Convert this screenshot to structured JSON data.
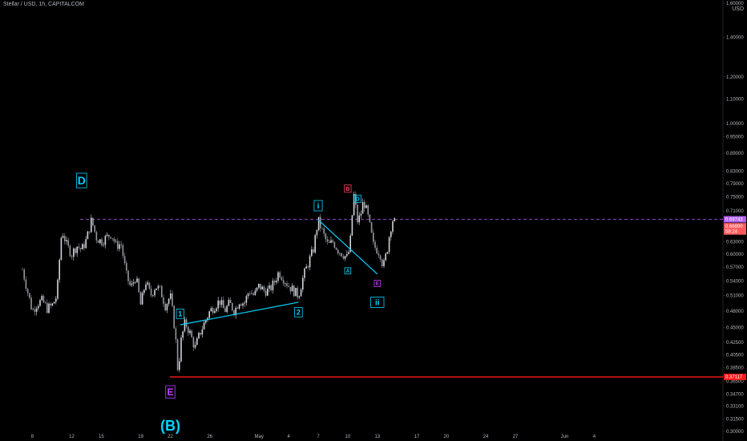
{
  "header": {
    "title": "Stellar / USD, 1h, CAPITALCOM",
    "currency": "USD"
  },
  "colors": {
    "background": "#000000",
    "candle_up": "#d1d4dc",
    "candle_down": "#9598a1",
    "wave_cyan": "#00d4ff",
    "wave_purple": "#c040ff",
    "wave_red": "#ff4060",
    "support_line": "#ff1a1a",
    "resistance_dash": "#b05ff0",
    "price_tag_current": "#ff5a5a"
  },
  "chart_data": {
    "type": "candlestick",
    "symbol": "Stellar / USD",
    "interval": "1h",
    "source": "CAPITALCOM",
    "y_scale": "log",
    "ylim": [
      0.3,
      1.6
    ],
    "y_ticks": [
      "1.60000",
      "1.40000",
      "1.20000",
      "1.10000",
      "1.00000",
      "0.95000",
      "0.89000",
      "0.83000",
      "0.79000",
      "0.75000",
      "0.71000",
      "0.66000",
      "0.63000",
      "0.60000",
      "0.57000",
      "0.54000",
      "0.51000",
      "0.48000",
      "0.45000",
      "0.42500",
      "0.40500",
      "0.38500",
      "0.36500",
      "0.34700",
      "0.33100",
      "0.31500",
      "0.30000"
    ],
    "x_ticks": [
      "8",
      "12",
      "15",
      "19",
      "22",
      "26",
      "May",
      "4",
      "7",
      "10",
      "13",
      "17",
      "20",
      "24",
      "27",
      "Jun",
      "4"
    ],
    "price_tags": [
      {
        "text": "0.68743",
        "value": 0.68743
      },
      {
        "text": "0.66890",
        "value": 0.6689
      },
      {
        "text": "58:24",
        "value": 0.6554
      },
      {
        "text": "0.37117",
        "value": 0.37117
      }
    ],
    "horizontal_levels": [
      {
        "value": 0.68743,
        "style": "dashed",
        "color": "#b05ff0"
      },
      {
        "value": 0.37117,
        "style": "solid",
        "color": "#ff1a1a"
      }
    ],
    "wave_labels": [
      {
        "text": "D",
        "x": "Apr 13",
        "y": 0.8,
        "color": "#00d4ff",
        "boxed": true,
        "size": 14
      },
      {
        "text": "E",
        "x": "Apr 22",
        "y": 0.35,
        "color": "#c040ff",
        "boxed": true,
        "size": 12
      },
      {
        "text": "(B)",
        "x": "Apr 22",
        "y": 0.307,
        "color": "#00d4ff",
        "boxed": false,
        "size": 18
      },
      {
        "text": "1",
        "x": "Apr 23",
        "y": 0.475,
        "color": "#00d4ff",
        "boxed": true,
        "size": 9
      },
      {
        "text": "2",
        "x": "May 5",
        "y": 0.478,
        "color": "#00d4ff",
        "boxed": true,
        "size": 9
      },
      {
        "text": "i",
        "x": "May 7",
        "y": 0.725,
        "color": "#00d4ff",
        "boxed": true,
        "size": 10
      },
      {
        "text": "B",
        "x": "May 10",
        "y": 0.775,
        "color": "#ff4060",
        "boxed": true,
        "size": 7
      },
      {
        "text": "D",
        "x": "May 11",
        "y": 0.745,
        "color": "#00d4ff",
        "boxed": true,
        "size": 7
      },
      {
        "text": "A",
        "x": "May 10",
        "y": 0.562,
        "color": "#00d4ff",
        "boxed": true,
        "size": 6
      },
      {
        "text": "E",
        "x": "May 13",
        "y": 0.535,
        "color": "#c040ff",
        "boxed": true,
        "size": 6
      },
      {
        "text": "ii",
        "x": "May 13",
        "y": 0.497,
        "color": "#00d4ff",
        "boxed": true,
        "size": 10
      }
    ],
    "trendlines": [
      {
        "from": [
          "Apr 23",
          0.455
        ],
        "to": [
          "May 5",
          0.497
        ],
        "color": "#00d4ff"
      },
      {
        "from": [
          "May 7",
          0.686
        ],
        "to": [
          "May 13",
          0.555
        ],
        "color": "#00d4ff"
      }
    ],
    "price_path": [
      [
        "Apr 7",
        0.565
      ],
      [
        "Apr 7.5",
        0.52
      ],
      [
        "Apr 8",
        0.48
      ],
      [
        "Apr 8.5",
        0.495
      ],
      [
        "Apr 9",
        0.5
      ],
      [
        "Apr 9.5",
        0.485
      ],
      [
        "Apr 10",
        0.49
      ],
      [
        "Apr 10.5",
        0.51
      ],
      [
        "Apr 11",
        0.66
      ],
      [
        "Apr 11.5",
        0.62
      ],
      [
        "Apr 12",
        0.6
      ],
      [
        "Apr 12.5",
        0.62
      ],
      [
        "Apr 13",
        0.61
      ],
      [
        "Apr 13.5",
        0.635
      ],
      [
        "Apr 14",
        0.685
      ],
      [
        "Apr 14.5",
        0.64
      ],
      [
        "Apr 15",
        0.63
      ],
      [
        "Apr 15.5",
        0.64
      ],
      [
        "Apr 16",
        0.65
      ],
      [
        "Apr 16.5",
        0.62
      ],
      [
        "Apr 17",
        0.625
      ],
      [
        "Apr 17.5",
        0.555
      ],
      [
        "Apr 18",
        0.525
      ],
      [
        "Apr 18.5",
        0.55
      ],
      [
        "Apr 19",
        0.49
      ],
      [
        "Apr 19.5",
        0.54
      ],
      [
        "Apr 20",
        0.51
      ],
      [
        "Apr 20.5",
        0.53
      ],
      [
        "Apr 21",
        0.52
      ],
      [
        "Apr 21.5",
        0.49
      ],
      [
        "Apr 22",
        0.51
      ],
      [
        "Apr 22.5",
        0.44
      ],
      [
        "Apr 22.8",
        0.371
      ],
      [
        "Apr 23",
        0.42
      ],
      [
        "Apr 23.5",
        0.46
      ],
      [
        "Apr 24",
        0.44
      ],
      [
        "Apr 24.5",
        0.415
      ],
      [
        "Apr 25",
        0.44
      ],
      [
        "Apr 25.5",
        0.46
      ],
      [
        "Apr 26",
        0.48
      ],
      [
        "Apr 26.5",
        0.49
      ],
      [
        "Apr 27",
        0.5
      ],
      [
        "Apr 27.5",
        0.48
      ],
      [
        "Apr 28",
        0.495
      ],
      [
        "Apr 28.5",
        0.48
      ],
      [
        "Apr 29",
        0.5
      ],
      [
        "Apr 29.5",
        0.495
      ],
      [
        "Apr 30",
        0.52
      ],
      [
        "Apr 30.5",
        0.51
      ],
      [
        "May 1",
        0.53
      ],
      [
        "May 1.5",
        0.52
      ],
      [
        "May 2",
        0.52
      ],
      [
        "May 2.5",
        0.535
      ],
      [
        "May 3",
        0.56
      ],
      [
        "May 3.5",
        0.545
      ],
      [
        "May 4",
        0.53
      ],
      [
        "May 4.5",
        0.52
      ],
      [
        "May 5",
        0.51
      ],
      [
        "May 5.5",
        0.55
      ],
      [
        "May 6",
        0.58
      ],
      [
        "May 6.5",
        0.61
      ],
      [
        "May 7",
        0.685
      ],
      [
        "May 7.5",
        0.65
      ],
      [
        "May 8",
        0.62
      ],
      [
        "May 8.5",
        0.63
      ],
      [
        "May 9",
        0.61
      ],
      [
        "May 9.5",
        0.6
      ],
      [
        "May 10",
        0.59
      ],
      [
        "May 10.3",
        0.64
      ],
      [
        "May 10.6",
        0.76
      ],
      [
        "May 11",
        0.68
      ],
      [
        "May 11.3",
        0.7
      ],
      [
        "May 11.6",
        0.74
      ],
      [
        "May 12",
        0.7
      ],
      [
        "May 12.3",
        0.66
      ],
      [
        "May 12.6",
        0.62
      ],
      [
        "May 13",
        0.61
      ],
      [
        "May 13.3",
        0.6
      ],
      [
        "May 13.6",
        0.57
      ],
      [
        "May 14",
        0.61
      ],
      [
        "May 14.3",
        0.66
      ],
      [
        "May 14.6",
        0.69
      ],
      [
        "May 14.9",
        0.6689
      ]
    ]
  }
}
